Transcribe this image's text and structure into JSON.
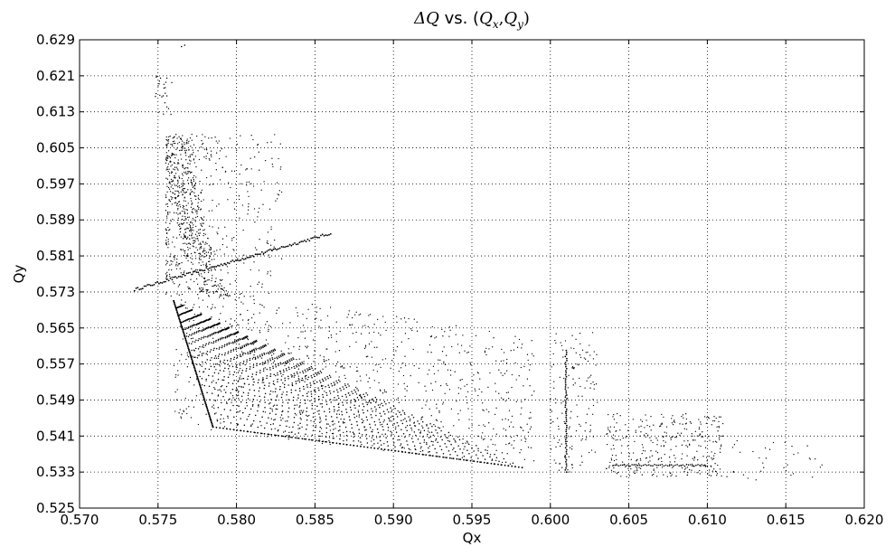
{
  "chart_data": {
    "type": "scatter",
    "title": "ΔQ vs. (Q_x,Q_y)",
    "title_parts": {
      "delta_q": "ΔQ",
      "vs": " vs. (",
      "qx_main": "Q",
      "qx_sub": "x",
      "comma": ",",
      "qy_main": "Q",
      "qy_sub": "y",
      "close": ")"
    },
    "xlabel": "Qx",
    "ylabel": "Qy",
    "xlim": [
      0.57,
      0.62
    ],
    "ylim": [
      0.525,
      0.629
    ],
    "xticks": [
      "0.570",
      "0.575",
      "0.580",
      "0.585",
      "0.590",
      "0.595",
      "0.600",
      "0.605",
      "0.610",
      "0.615",
      "0.620"
    ],
    "yticks": [
      "0.525",
      "0.533",
      "0.541",
      "0.549",
      "0.557",
      "0.565",
      "0.573",
      "0.581",
      "0.589",
      "0.597",
      "0.605",
      "0.613",
      "0.621",
      "0.629"
    ],
    "grid": true,
    "marker_color": "#000000",
    "series": [
      {
        "values": "approximate dense point cloud of tune footprint",
        "footprint_triangle": {
          "corner_top": [
            0.576,
            0.571
          ],
          "corner_bottom": [
            0.5785,
            0.543
          ],
          "corner_right": [
            0.5982,
            0.534
          ]
        },
        "upper_band_line": [
          [
            0.5735,
            0.5735
          ],
          [
            0.586,
            0.586
          ]
        ],
        "vertical_line": [
          [
            0.601,
            0.533
          ],
          [
            0.601,
            0.56
          ]
        ],
        "lower_right_line": [
          [
            0.604,
            0.5345
          ],
          [
            0.61,
            0.5345
          ]
        ],
        "clusters": [
          {
            "x": [
              0.575,
              0.583
            ],
            "y": [
              0.572,
              0.608
            ],
            "n": 900
          },
          {
            "x": [
              0.576,
              0.599
            ],
            "y": [
              0.54,
              0.572
            ],
            "n": 900
          },
          {
            "x": [
              0.6,
              0.603
            ],
            "y": [
              0.533,
              0.564
            ],
            "n": 140
          },
          {
            "x": [
              0.6035,
              0.611
            ],
            "y": [
              0.532,
              0.546
            ],
            "n": 320
          },
          {
            "x": [
              0.611,
              0.6175
            ],
            "y": [
              0.531,
              0.54
            ],
            "n": 35
          }
        ]
      }
    ]
  }
}
